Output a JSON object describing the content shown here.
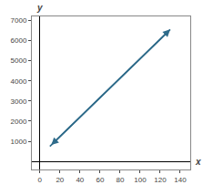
{
  "chart_data": {
    "type": "line",
    "x": [
      10,
      130
    ],
    "values": [
      750,
      6550
    ],
    "color": "#2e6b8a",
    "marker": "arrow",
    "xlabel": "x",
    "ylabel": "y",
    "xlim": [
      -8,
      150
    ],
    "ylim": [
      -400,
      7200
    ],
    "xticks": [
      0,
      20,
      40,
      60,
      80,
      100,
      120,
      140
    ],
    "yticks": [
      1000,
      2000,
      3000,
      4000,
      5000,
      6000,
      7000
    ],
    "grid": false
  }
}
